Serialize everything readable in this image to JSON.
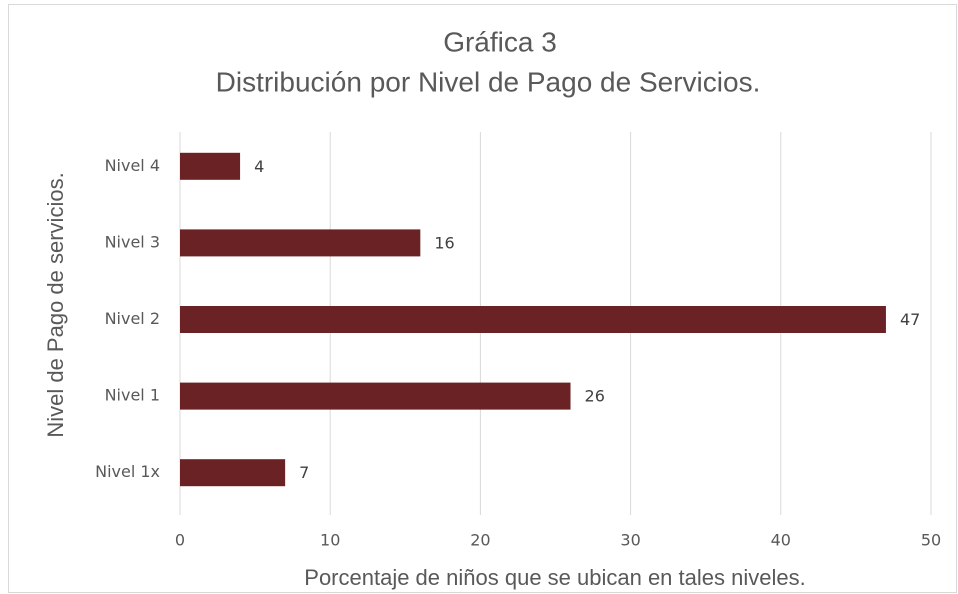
{
  "chart_data": {
    "type": "bar",
    "orientation": "horizontal",
    "title": "Gráfica 3",
    "subtitle": "Distribución por Nivel de Pago de Servicios.",
    "xlabel": "Porcentaje de niños que se ubican en tales niveles.",
    "ylabel": "Nivel de Pago de servicios.",
    "categories": [
      "Nivel 4",
      "Nivel 3",
      "Nivel 2",
      "Nivel 1",
      "Nivel 1x"
    ],
    "values": [
      4,
      16,
      47,
      26,
      7
    ],
    "color": "#6b2224",
    "xlim": [
      0,
      50
    ],
    "xticks": [
      0,
      10,
      20,
      30,
      40,
      50
    ],
    "grid": true
  }
}
